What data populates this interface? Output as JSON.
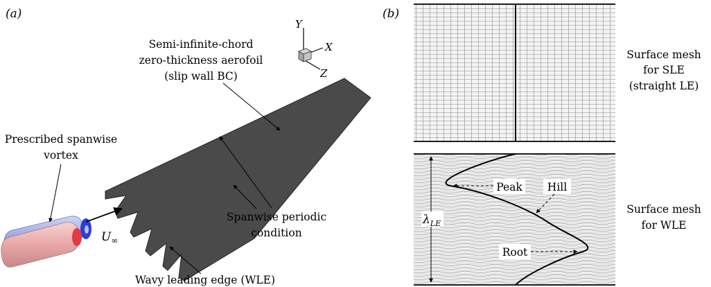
{
  "panel_a": {
    "tag": "(a)",
    "axes": {
      "y": "Y",
      "x": "X",
      "z": "Z"
    },
    "labels": {
      "aerofoil_line1": "Semi-infinite-chord",
      "aerofoil_line2": "zero-thickness aerofoil",
      "aerofoil_line3": "(slip wall BC)",
      "vortex_line1": "Prescribed spanwise",
      "vortex_line2": "vortex",
      "freestream": "U",
      "freestream_sub": "∞",
      "periodic_line1": "Spanwise periodic",
      "periodic_line2": "condition",
      "wle": "Wavy leading edge (WLE)"
    }
  },
  "panel_b": {
    "tag": "(b)",
    "labels": {
      "sle_line1": "Surface mesh",
      "sle_line2": "for SLE",
      "sle_line3": "(straight LE)",
      "wle_line1": "Surface mesh",
      "wle_line2": "for WLE",
      "peak": "Peak",
      "hill": "Hill",
      "root": "Root",
      "lambda": "λ",
      "lambda_sub": "LE"
    }
  },
  "colors": {
    "aerofoil": "#4a4a4a",
    "vortex_red": "#e8a6a6",
    "vortex_blue": "#9aa6df",
    "mesh_line": "#888888"
  }
}
